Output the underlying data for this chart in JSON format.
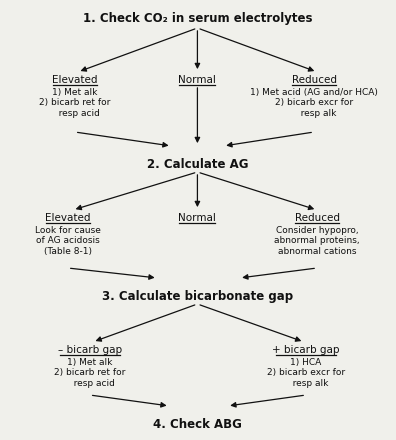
{
  "bg_color": "#f0f0eb",
  "title": "1. Check CO₂ in serum electrolytes",
  "step2": "2. Calculate AG",
  "step3": "3. Calculate bicarbonate gap",
  "step4": "4. Check ABG",
  "elevated1_label": "Elevated",
  "elevated1_text": "1) Met alk\n2) bicarb ret for\n   resp acid",
  "normal1_label": "Normal",
  "reduced1_label": "Reduced",
  "reduced1_text": "1) Met acid (AG and/or HCA)\n2) bicarb excr for\n   resp alk",
  "elevated2_label": "Elevated",
  "elevated2_text": "Look for cause\nof AG acidosis\n(Table 8-1)",
  "normal2_label": "Normal",
  "reduced2_label": "Reduced",
  "reduced2_text": "Consider hypopro,\nabnormal proteins,\nabnormal cations",
  "neg_bicarb_label": "– bicarb gap",
  "neg_bicarb_text": "1) Met alk\n2) bicarb ret for\n   resp acid",
  "pos_bicarb_label": "+ bicarb gap",
  "pos_bicarb_text": "1) HCA\n2) bicarb excr for\n   resp alk",
  "text_color": "#111111",
  "arrow_color": "#111111"
}
